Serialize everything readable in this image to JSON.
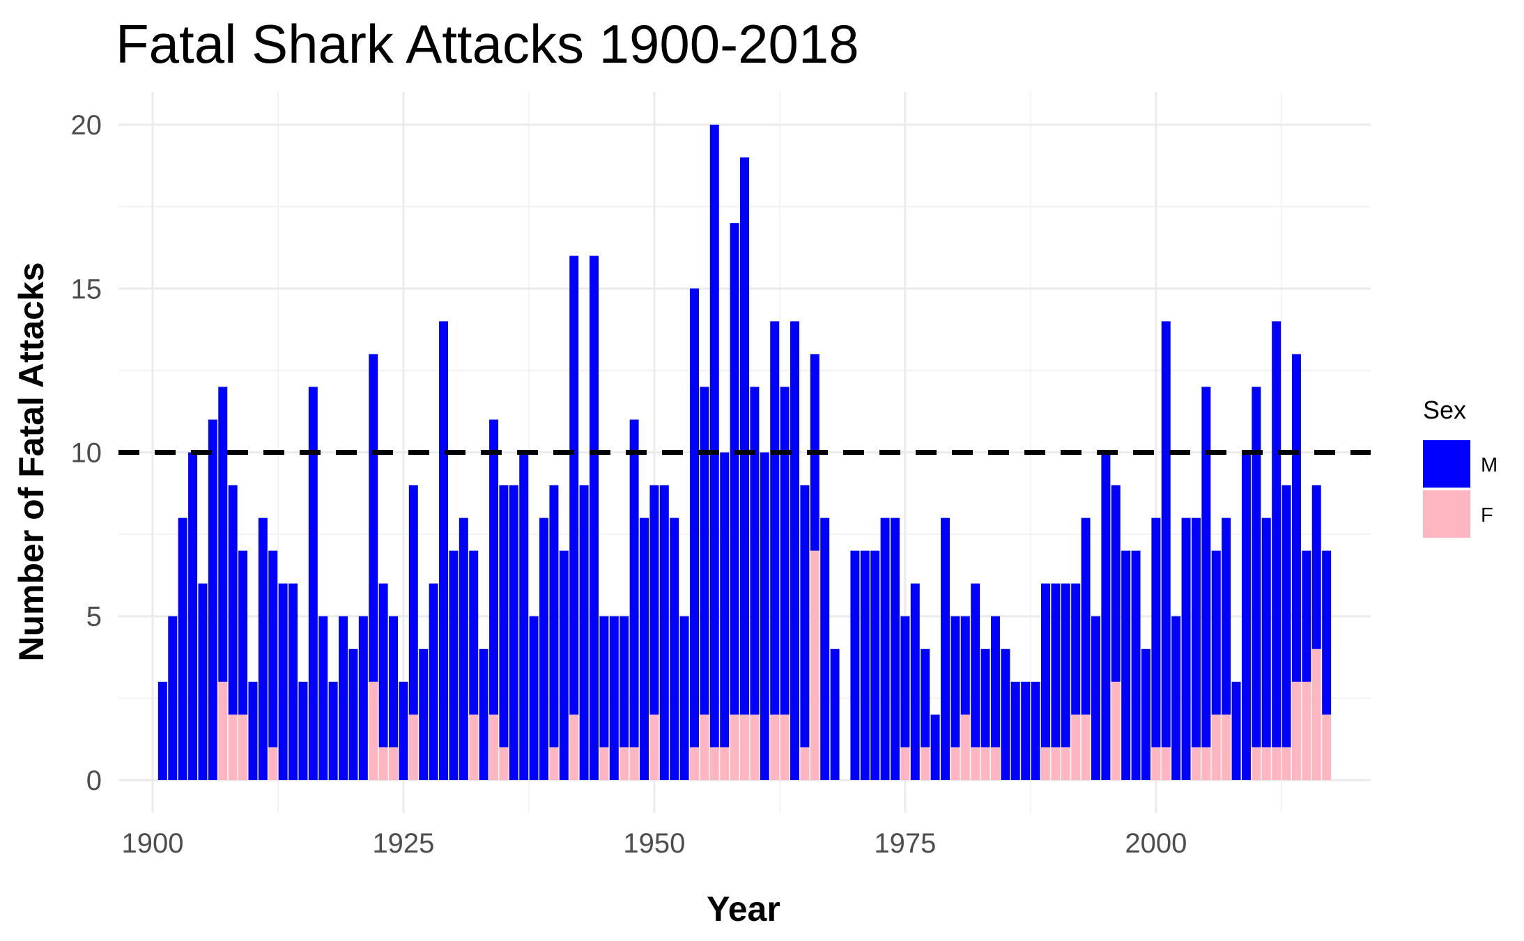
{
  "chart_data": {
    "type": "bar",
    "stacked": true,
    "title": "Fatal Shark Attacks 1900-2018",
    "xlabel": "Year",
    "ylabel": "Number of Fatal Attacks",
    "xlim": [
      1896.6,
      2021.4
    ],
    "ylim": [
      -1,
      21
    ],
    "x_ticks": [
      1900,
      1925,
      1950,
      1975,
      2000
    ],
    "y_ticks": [
      0,
      5,
      10,
      15,
      20
    ],
    "grid": true,
    "reference_line": {
      "y": 10,
      "style": "dashed",
      "color": "#000000"
    },
    "legend": {
      "title": "Sex",
      "position": "right"
    },
    "x": [
      1901,
      1902,
      1903,
      1904,
      1905,
      1906,
      1907,
      1908,
      1909,
      1910,
      1911,
      1912,
      1913,
      1914,
      1915,
      1916,
      1917,
      1918,
      1919,
      1920,
      1921,
      1922,
      1923,
      1924,
      1925,
      1926,
      1927,
      1928,
      1929,
      1930,
      1931,
      1932,
      1933,
      1934,
      1935,
      1936,
      1937,
      1938,
      1939,
      1940,
      1941,
      1942,
      1943,
      1944,
      1945,
      1946,
      1947,
      1948,
      1949,
      1950,
      1951,
      1952,
      1953,
      1954,
      1955,
      1956,
      1957,
      1958,
      1959,
      1960,
      1961,
      1962,
      1963,
      1964,
      1965,
      1966,
      1967,
      1968,
      1969,
      1970,
      1971,
      1972,
      1973,
      1974,
      1975,
      1976,
      1977,
      1978,
      1979,
      1980,
      1981,
      1982,
      1983,
      1984,
      1985,
      1986,
      1987,
      1988,
      1989,
      1990,
      1991,
      1992,
      1993,
      1994,
      1995,
      1996,
      1997,
      1998,
      1999,
      2000,
      2001,
      2002,
      2003,
      2004,
      2005,
      2006,
      2007,
      2008,
      2009,
      2010,
      2011,
      2012,
      2013,
      2014,
      2015,
      2016,
      2017
    ],
    "series": [
      {
        "name": "M",
        "color": "#0000ff",
        "values": [
          3,
          5,
          8,
          10,
          6,
          11,
          9,
          7,
          5,
          3,
          8,
          6,
          6,
          6,
          3,
          12,
          5,
          3,
          5,
          4,
          5,
          10,
          5,
          4,
          3,
          7,
          4,
          6,
          14,
          7,
          8,
          5,
          4,
          9,
          8,
          9,
          10,
          5,
          8,
          8,
          7,
          14,
          9,
          16,
          4,
          5,
          4,
          10,
          8,
          7,
          9,
          8,
          5,
          14,
          10,
          19,
          9,
          15,
          17,
          10,
          10,
          12,
          10,
          14,
          8,
          6,
          8,
          4,
          0,
          7,
          7,
          7,
          8,
          8,
          4,
          6,
          3,
          2,
          8,
          4,
          3,
          5,
          3,
          4,
          4,
          3,
          3,
          3,
          5,
          5,
          5,
          4,
          6,
          5,
          10,
          6,
          7,
          7,
          4,
          7,
          13,
          5,
          8,
          7,
          11,
          5,
          6,
          3,
          10,
          11,
          7,
          13,
          8,
          10,
          4,
          5,
          5
        ],
        "totals": [
          3,
          5,
          8,
          10,
          6,
          11,
          12,
          9,
          7,
          3,
          8,
          7,
          6,
          6,
          3,
          12,
          5,
          3,
          5,
          4,
          5,
          13,
          6,
          5,
          3,
          9,
          4,
          6,
          14,
          7,
          8,
          7,
          4,
          11,
          9,
          9,
          10,
          5,
          8,
          9,
          7,
          16,
          9,
          16,
          5,
          5,
          5,
          11,
          8,
          9,
          9,
          8,
          5,
          15,
          12,
          20,
          10,
          17,
          19,
          12,
          10,
          14,
          12,
          14,
          9,
          13,
          8,
          4,
          0,
          7,
          7,
          7,
          8,
          8,
          5,
          6,
          4,
          2,
          8,
          5,
          5,
          6,
          4,
          5,
          4,
          3,
          3,
          3,
          6,
          6,
          6,
          6,
          8,
          5,
          10,
          9,
          7,
          7,
          4,
          8,
          14,
          5,
          8,
          8,
          12,
          7,
          8,
          3,
          10,
          12,
          8,
          14,
          9,
          13,
          7,
          9,
          7
        ]
      },
      {
        "name": "F",
        "color": "#ffb6c1",
        "values": [
          0,
          0,
          0,
          0,
          0,
          0,
          3,
          2,
          2,
          0,
          0,
          1,
          0,
          0,
          0,
          0,
          0,
          0,
          0,
          0,
          0,
          3,
          1,
          1,
          0,
          2,
          0,
          0,
          0,
          0,
          0,
          2,
          0,
          2,
          1,
          0,
          0,
          0,
          0,
          1,
          0,
          2,
          0,
          0,
          1,
          0,
          1,
          1,
          0,
          2,
          0,
          0,
          0,
          1,
          2,
          1,
          1,
          2,
          2,
          2,
          0,
          2,
          2,
          0,
          1,
          7,
          0,
          0,
          0,
          0,
          0,
          0,
          0,
          0,
          1,
          0,
          1,
          0,
          0,
          1,
          2,
          1,
          1,
          1,
          0,
          0,
          0,
          0,
          1,
          1,
          1,
          2,
          2,
          0,
          0,
          3,
          0,
          0,
          0,
          1,
          1,
          0,
          0,
          1,
          1,
          2,
          2,
          0,
          0,
          1,
          1,
          1,
          1,
          3,
          3,
          4,
          2
        ]
      }
    ]
  },
  "legend": {
    "title": "Sex",
    "items": [
      {
        "label": "M",
        "color": "#0000ff"
      },
      {
        "label": "F",
        "color": "#ffb6c1"
      }
    ]
  }
}
